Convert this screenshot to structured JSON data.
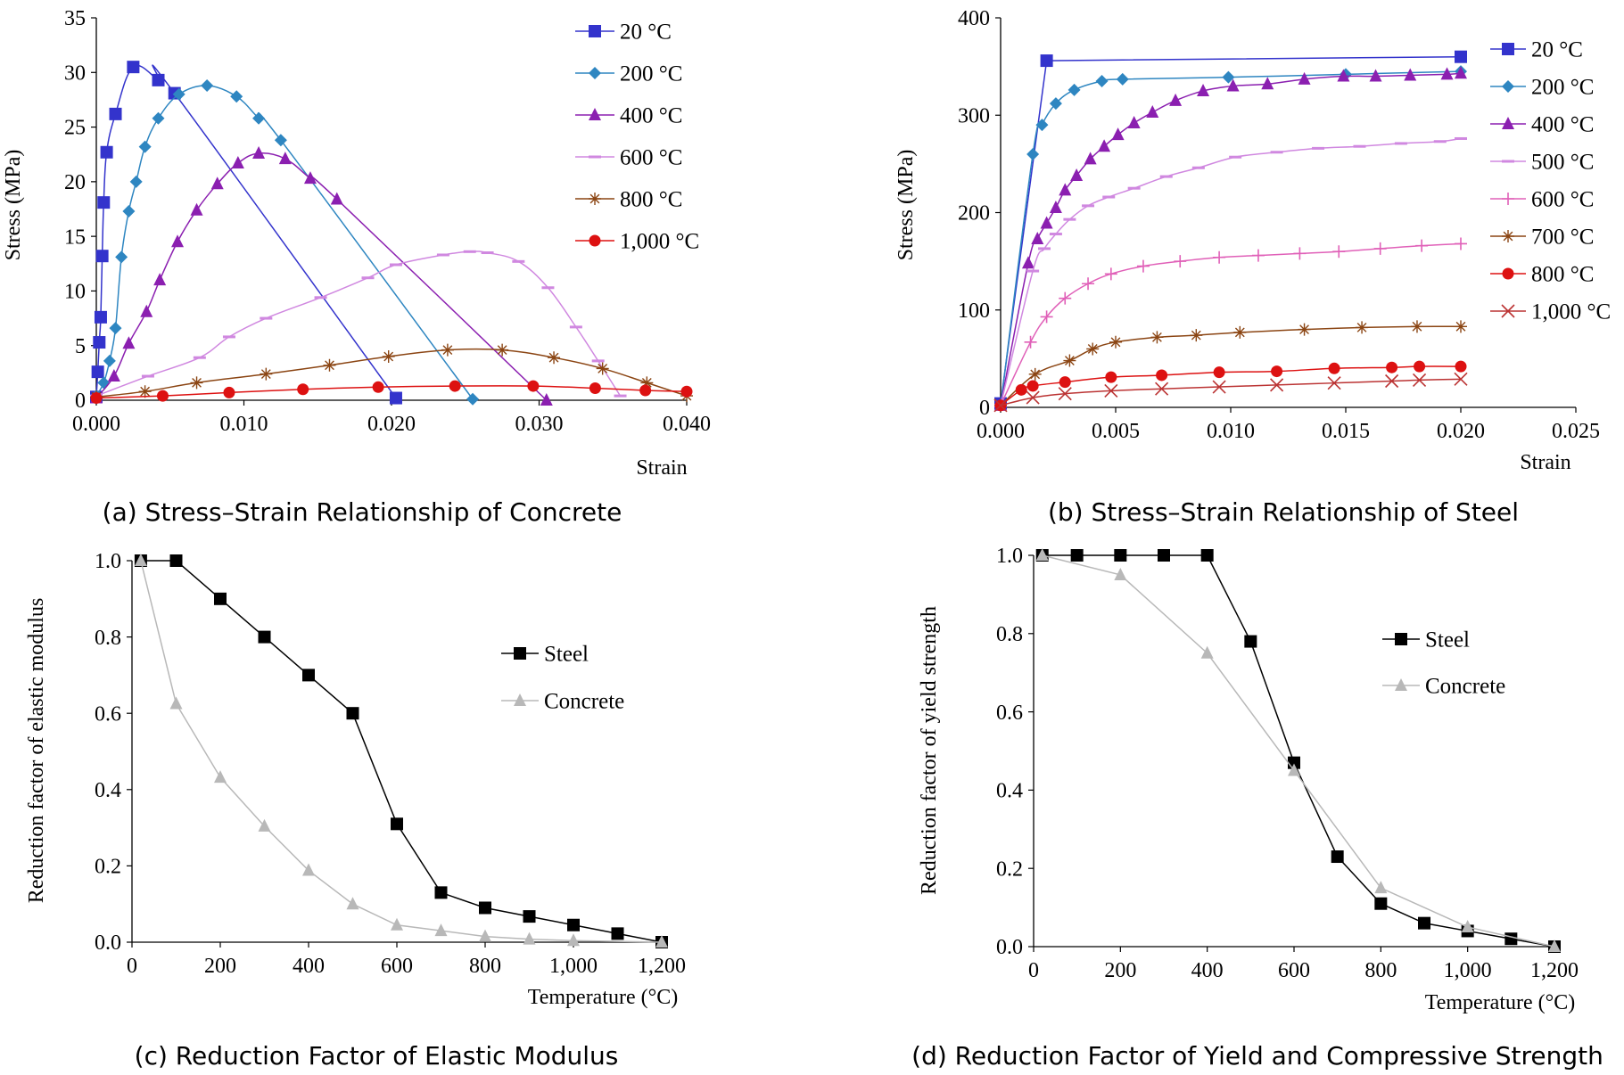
{
  "chart_data": [
    {
      "id": "a",
      "type": "line",
      "caption": "(a) Stress–Strain Relationship of Concrete",
      "xlabel": "Strain",
      "ylabel": "Stress (MPa)",
      "xlim": [
        0,
        0.04
      ],
      "ylim": [
        0,
        35
      ],
      "xticks": [
        0,
        0.01,
        0.02,
        0.03,
        0.04
      ],
      "xtick_labels": [
        "0.000",
        "0.010",
        "0.020",
        "0.030",
        "0.040"
      ],
      "yticks": [
        0,
        5,
        10,
        15,
        20,
        25,
        30,
        35
      ],
      "ytick_labels": [
        "0",
        "5",
        "10",
        "15",
        "20",
        "25",
        "30",
        "35"
      ],
      "grid": false,
      "legend_position": "top-right",
      "series": [
        {
          "name": "20 °C",
          "color": "#3333cc",
          "marker": "square",
          "x": [
            0,
            0.0001,
            0.0002,
            0.0003,
            0.0004,
            0.0005,
            0.0007,
            0.0013,
            0.0025,
            0.0042,
            0.0053,
            0.0203
          ],
          "y": [
            0.3,
            2.6,
            5.3,
            7.6,
            13.2,
            18.1,
            22.7,
            26.2,
            30.5,
            29.3,
            28.1,
            0.2
          ]
        },
        {
          "name": "200 °C",
          "color": "#2e86c1",
          "marker": "diamond",
          "x": [
            0,
            0.0005,
            0.0009,
            0.0013,
            0.0017,
            0.0022,
            0.0027,
            0.0033,
            0.0042,
            0.0056,
            0.0075,
            0.0095,
            0.011,
            0.0125,
            0.0255
          ],
          "y": [
            0.4,
            1.6,
            3.6,
            6.6,
            13.1,
            17.3,
            20.0,
            23.2,
            25.8,
            28.0,
            28.8,
            27.8,
            25.8,
            23.8,
            0.1
          ]
        },
        {
          "name": "400 °C",
          "color": "#8b1fb0",
          "marker": "triangle",
          "x": [
            0,
            0.0012,
            0.0022,
            0.0034,
            0.0043,
            0.0055,
            0.0068,
            0.0082,
            0.0096,
            0.011,
            0.0128,
            0.0145,
            0.0163,
            0.0305
          ],
          "y": [
            0.2,
            2.2,
            5.2,
            8.1,
            11.0,
            14.5,
            17.4,
            19.8,
            21.7,
            22.6,
            22.1,
            20.3,
            18.4,
            0.0
          ]
        },
        {
          "name": "600 °C",
          "color": "#d088e0",
          "marker": "dash",
          "x": [
            0,
            0.0035,
            0.007,
            0.009,
            0.0115,
            0.0152,
            0.0184,
            0.0203,
            0.0235,
            0.0253,
            0.0265,
            0.0286,
            0.0306,
            0.0325,
            0.034,
            0.0355
          ],
          "y": [
            0.4,
            2.2,
            3.9,
            5.8,
            7.5,
            9.4,
            11.2,
            12.4,
            13.3,
            13.6,
            13.5,
            12.7,
            10.3,
            6.7,
            3.6,
            0.4
          ]
        },
        {
          "name": "800 °C",
          "color": "#8b4513",
          "marker": "asterisk",
          "x": [
            0,
            0.0033,
            0.0068,
            0.0115,
            0.0158,
            0.0198,
            0.0238,
            0.0275,
            0.031,
            0.0343,
            0.0373,
            0.04
          ],
          "y": [
            0.3,
            0.8,
            1.6,
            2.4,
            3.2,
            4.0,
            4.6,
            4.6,
            3.9,
            2.9,
            1.6,
            0.4
          ]
        },
        {
          "name": "1,000 °C",
          "color": "#dd1111",
          "marker": "circle",
          "x": [
            0,
            0.0045,
            0.009,
            0.014,
            0.0191,
            0.0243,
            0.0296,
            0.0338,
            0.0372,
            0.04
          ],
          "y": [
            0.2,
            0.4,
            0.7,
            1.0,
            1.2,
            1.3,
            1.3,
            1.1,
            0.9,
            0.8
          ]
        }
      ]
    },
    {
      "id": "b",
      "type": "line",
      "caption": "(b) Stress–Strain Relationship of Steel",
      "xlabel": "Strain",
      "ylabel": "Stress (MPa)",
      "xlim": [
        0,
        0.025
      ],
      "ylim": [
        0,
        400
      ],
      "xticks": [
        0,
        0.005,
        0.01,
        0.015,
        0.02,
        0.025
      ],
      "xtick_labels": [
        "0.000",
        "0.005",
        "0.010",
        "0.015",
        "0.020",
        "0.025"
      ],
      "yticks": [
        0,
        100,
        200,
        300,
        400
      ],
      "ytick_labels": [
        "0",
        "100",
        "200",
        "300",
        "400"
      ],
      "grid": false,
      "legend_position": "right",
      "series": [
        {
          "name": "20 °C",
          "color": "#3333cc",
          "marker": "square",
          "x": [
            0,
            0.002,
            0.02
          ],
          "y": [
            4,
            356,
            360
          ]
        },
        {
          "name": "200 °C",
          "color": "#2e86c1",
          "marker": "diamond",
          "x": [
            0,
            0.0014,
            0.0018,
            0.0024,
            0.0032,
            0.0044,
            0.0053,
            0.0099,
            0.015,
            0.02
          ],
          "y": [
            2,
            260,
            290,
            312,
            326,
            335,
            337,
            339,
            342,
            345
          ]
        },
        {
          "name": "400 °C",
          "color": "#8b1fb0",
          "marker": "triangle",
          "x": [
            0,
            0.0012,
            0.0016,
            0.002,
            0.0024,
            0.0028,
            0.0033,
            0.0039,
            0.0045,
            0.0051,
            0.0058,
            0.0066,
            0.0076,
            0.0088,
            0.0101,
            0.0116,
            0.0132,
            0.0149,
            0.0163,
            0.0178,
            0.0194,
            0.02
          ],
          "y": [
            2,
            148,
            173,
            189,
            205,
            223,
            238,
            255,
            268,
            280,
            292,
            303,
            315,
            325,
            330,
            332,
            337,
            340,
            340,
            341,
            342,
            343
          ]
        },
        {
          "name": "500 °C",
          "color": "#d088e0",
          "marker": "dash",
          "x": [
            0,
            0.0014,
            0.0019,
            0.0024,
            0.003,
            0.0038,
            0.0047,
            0.0058,
            0.0072,
            0.0086,
            0.0102,
            0.012,
            0.0138,
            0.0156,
            0.0174,
            0.0191,
            0.02
          ],
          "y": [
            2,
            140,
            163,
            178,
            193,
            207,
            216,
            225,
            237,
            246,
            257,
            262,
            266,
            268,
            271,
            273,
            276
          ]
        },
        {
          "name": "600 °C",
          "color": "#e060b8",
          "marker": "plus",
          "x": [
            0,
            0.0013,
            0.002,
            0.0028,
            0.0038,
            0.0048,
            0.0062,
            0.0078,
            0.0095,
            0.0112,
            0.013,
            0.0147,
            0.0165,
            0.0183,
            0.02
          ],
          "y": [
            2,
            67,
            93,
            112,
            127,
            137,
            145,
            150,
            154,
            156,
            158,
            160,
            163,
            166,
            168
          ]
        },
        {
          "name": "700 °C",
          "color": "#8b4513",
          "marker": "asterisk",
          "x": [
            0,
            0.0015,
            0.003,
            0.004,
            0.005,
            0.0068,
            0.0085,
            0.0104,
            0.0132,
            0.0157,
            0.0181,
            0.02
          ],
          "y": [
            2,
            34,
            48,
            60,
            67,
            72,
            74,
            77,
            80,
            82,
            83,
            83
          ]
        },
        {
          "name": "800 °C",
          "color": "#dd1111",
          "marker": "circle",
          "x": [
            0,
            0.0009,
            0.0014,
            0.0028,
            0.0048,
            0.007,
            0.0095,
            0.012,
            0.0145,
            0.017,
            0.0182,
            0.02
          ],
          "y": [
            2,
            18,
            22,
            26,
            31,
            33,
            36,
            37,
            40,
            41,
            42,
            42
          ]
        },
        {
          "name": "1,000 °C",
          "color": "#bb3333",
          "marker": "cross",
          "x": [
            0,
            0.0014,
            0.0028,
            0.0048,
            0.007,
            0.0095,
            0.012,
            0.0145,
            0.017,
            0.0182,
            0.02
          ],
          "y": [
            2,
            10,
            14,
            17,
            19,
            21,
            23,
            25,
            27,
            28,
            29
          ]
        }
      ]
    },
    {
      "id": "c",
      "type": "line",
      "caption": "(c) Reduction Factor of Elastic Modulus",
      "xlabel": "Temperature (°C)",
      "ylabel": "Reduction factor of elastic modulus",
      "xlim": [
        0,
        1200
      ],
      "ylim": [
        0,
        1.0
      ],
      "xticks": [
        0,
        200,
        400,
        600,
        800,
        1000,
        1200
      ],
      "xtick_labels": [
        "0",
        "200",
        "400",
        "600",
        "800",
        "1,000",
        "1,200"
      ],
      "yticks": [
        0,
        0.2,
        0.4,
        0.6,
        0.8,
        1.0
      ],
      "ytick_labels": [
        "0.0",
        "0.2",
        "0.4",
        "0.6",
        "0.8",
        "1.0"
      ],
      "grid": false,
      "legend_position": "center-right",
      "series": [
        {
          "name": "Steel",
          "color": "#000000",
          "marker": "square",
          "x": [
            20,
            100,
            200,
            300,
            400,
            500,
            600,
            700,
            800,
            900,
            1000,
            1100,
            1200
          ],
          "y": [
            1.0,
            1.0,
            0.9,
            0.8,
            0.7,
            0.6,
            0.31,
            0.13,
            0.09,
            0.0675,
            0.045,
            0.0225,
            0.0
          ]
        },
        {
          "name": "Concrete",
          "color": "#b8b8b8",
          "marker": "triangle",
          "x": [
            20,
            100,
            200,
            300,
            400,
            500,
            600,
            700,
            800,
            900,
            1000,
            1200
          ],
          "y": [
            1.0,
            0.625,
            0.432,
            0.304,
            0.188,
            0.1,
            0.045,
            0.03,
            0.015,
            0.008,
            0.004,
            0.0
          ]
        }
      ]
    },
    {
      "id": "d",
      "type": "line",
      "caption": "(d) Reduction Factor of Yield and Compressive Strength",
      "xlabel": "Temperature (°C)",
      "ylabel": "Reduction factor of yield strength",
      "xlim": [
        0,
        1200
      ],
      "ylim": [
        0,
        1.0
      ],
      "xticks": [
        0,
        200,
        400,
        600,
        800,
        1000,
        1200
      ],
      "xtick_labels": [
        "0",
        "200",
        "400",
        "600",
        "800",
        "1,000",
        "1,200"
      ],
      "yticks": [
        0,
        0.2,
        0.4,
        0.6,
        0.8,
        1.0
      ],
      "ytick_labels": [
        "0.0",
        "0.2",
        "0.4",
        "0.6",
        "0.8",
        "1.0"
      ],
      "grid": false,
      "legend_position": "center-right",
      "series": [
        {
          "name": "Steel",
          "color": "#000000",
          "marker": "square",
          "x": [
            20,
            100,
            200,
            300,
            400,
            500,
            600,
            700,
            800,
            900,
            1000,
            1100,
            1200
          ],
          "y": [
            1.0,
            1.0,
            1.0,
            1.0,
            1.0,
            0.78,
            0.47,
            0.23,
            0.11,
            0.06,
            0.04,
            0.02,
            0.0
          ]
        },
        {
          "name": "Concrete",
          "color": "#b8b8b8",
          "marker": "triangle",
          "x": [
            20,
            200,
            400,
            600,
            800,
            1000,
            1200
          ],
          "y": [
            1.0,
            0.95,
            0.75,
            0.45,
            0.15,
            0.05,
            0.0
          ]
        }
      ]
    }
  ]
}
